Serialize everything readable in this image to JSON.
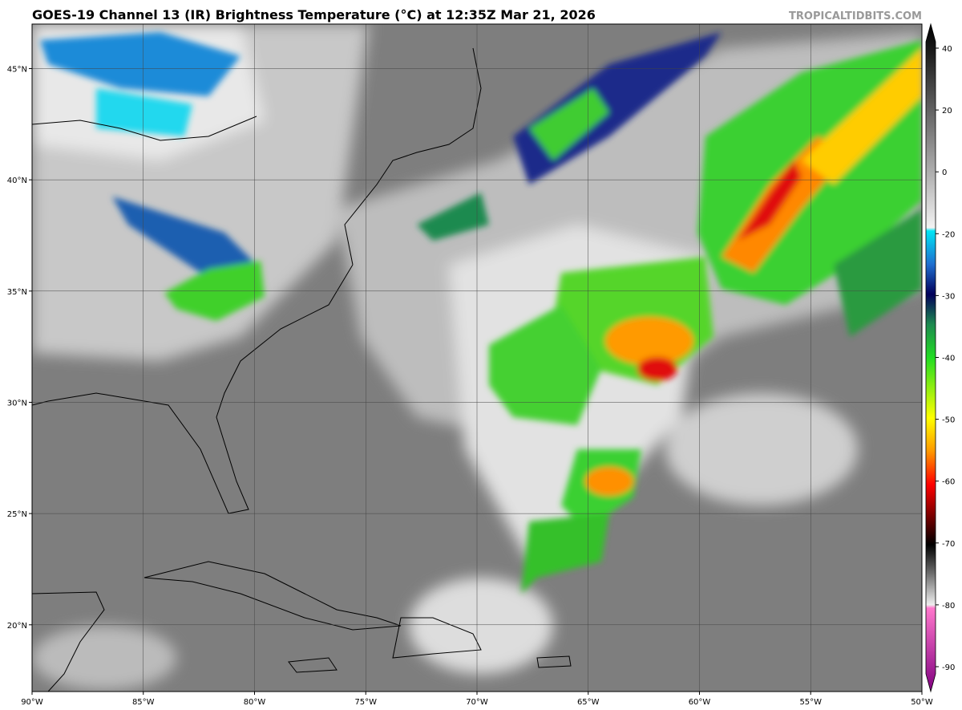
{
  "title": "GOES-19 Channel 13 (IR) Brightness Temperature (°C) at 12:35Z Mar 21, 2026",
  "credit": "TROPICALTIDBITS.COM",
  "map": {
    "lonlim": [
      -90,
      -50
    ],
    "latlim": [
      17,
      47
    ],
    "lon_ticks": [
      {
        "value": -90,
        "label": "90°W"
      },
      {
        "value": -85,
        "label": "85°W"
      },
      {
        "value": -80,
        "label": "80°W"
      },
      {
        "value": -75,
        "label": "75°W"
      },
      {
        "value": -70,
        "label": "70°W"
      },
      {
        "value": -65,
        "label": "65°W"
      },
      {
        "value": -60,
        "label": "60°W"
      },
      {
        "value": -55,
        "label": "55°W"
      },
      {
        "value": -50,
        "label": "50°W"
      }
    ],
    "lat_ticks": [
      {
        "value": 45,
        "label": "45°N"
      },
      {
        "value": 40,
        "label": "40°N"
      },
      {
        "value": 35,
        "label": "35°N"
      },
      {
        "value": 30,
        "label": "30°N"
      },
      {
        "value": 25,
        "label": "25°N"
      },
      {
        "value": 20,
        "label": "20°N"
      }
    ]
  },
  "colorbar": {
    "ticks": [
      40,
      20,
      0,
      -20,
      -30,
      -40,
      -50,
      -60,
      -70,
      -80,
      -90
    ]
  }
}
